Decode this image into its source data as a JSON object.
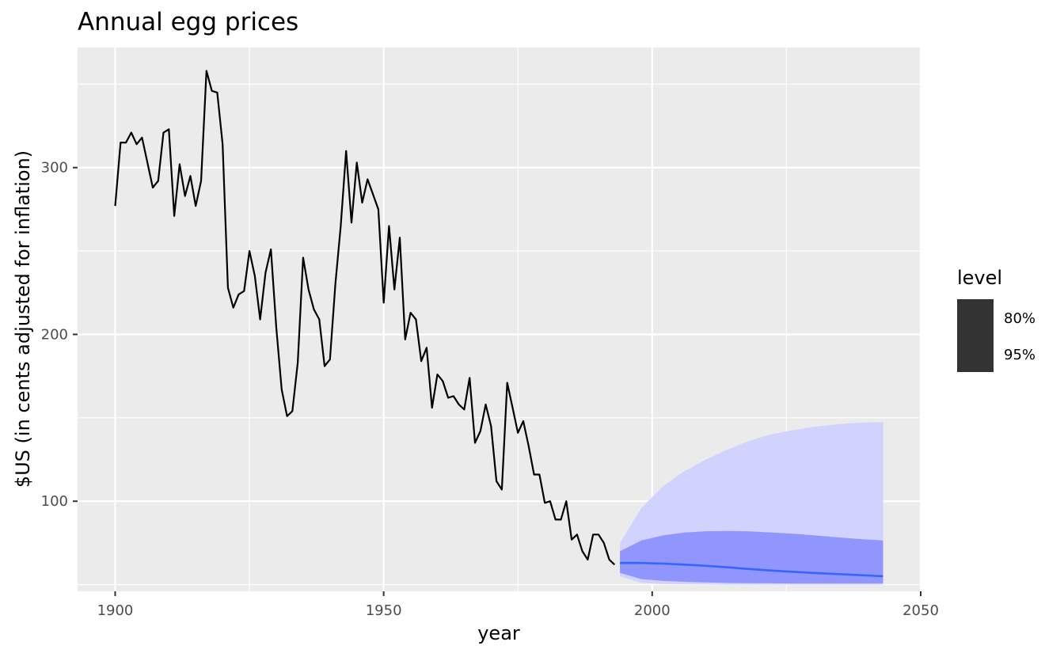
{
  "chart_data": {
    "type": "line",
    "title": "Annual egg prices",
    "xlabel": "year",
    "ylabel": "$US (in cents adjusted for inflation)",
    "xlim": [
      1893,
      2050
    ],
    "ylim": [
      46,
      372
    ],
    "x_ticks": [
      1900,
      1950,
      2000,
      2050
    ],
    "y_ticks": [
      100,
      200,
      300
    ],
    "x_tick_labels": [
      "1900",
      "1950",
      "2000",
      "2050"
    ],
    "y_tick_labels": [
      "100",
      "200",
      "300"
    ],
    "grid": true,
    "legend": {
      "title": "level",
      "position": "right",
      "entries": [
        "80%",
        "95%"
      ]
    },
    "colors": {
      "panel": "#ebebeb",
      "grid": "#ffffff",
      "history_line": "#000000",
      "forecast_line": "#3366ff",
      "band_95": "#d2d2ff",
      "band_80": "#9196ff",
      "legend_key": "#333333"
    },
    "history": {
      "x": [
        1900,
        1901,
        1902,
        1903,
        1904,
        1905,
        1906,
        1907,
        1908,
        1909,
        1910,
        1911,
        1912,
        1913,
        1914,
        1915,
        1916,
        1917,
        1918,
        1919,
        1920,
        1921,
        1922,
        1923,
        1924,
        1925,
        1926,
        1927,
        1928,
        1929,
        1930,
        1931,
        1932,
        1933,
        1934,
        1935,
        1936,
        1937,
        1938,
        1939,
        1940,
        1941,
        1942,
        1943,
        1944,
        1945,
        1946,
        1947,
        1948,
        1949,
        1950,
        1951,
        1952,
        1953,
        1954,
        1955,
        1956,
        1957,
        1958,
        1959,
        1960,
        1961,
        1962,
        1963,
        1964,
        1965,
        1966,
        1967,
        1968,
        1969,
        1970,
        1971,
        1972,
        1973,
        1974,
        1975,
        1976,
        1977,
        1978,
        1979,
        1980,
        1981,
        1982,
        1983,
        1984,
        1985,
        1986,
        1987,
        1988,
        1989,
        1990,
        1991,
        1992,
        1993
      ],
      "y": [
        277,
        315,
        315,
        321,
        314,
        318,
        303,
        288,
        292,
        321,
        323,
        271,
        302,
        283,
        295,
        277,
        292,
        358,
        346,
        345,
        314,
        228,
        216,
        224,
        226,
        250,
        235,
        209,
        237,
        251,
        204,
        167,
        151,
        154,
        183,
        246,
        227,
        215,
        209,
        181,
        185,
        230,
        265,
        310,
        267,
        303,
        279,
        293,
        284,
        275,
        219,
        265,
        227,
        258,
        197,
        213,
        209,
        184,
        192,
        156,
        176,
        172,
        162,
        163,
        158,
        155,
        174,
        135,
        142,
        158,
        145,
        112,
        107,
        171,
        156,
        141,
        148,
        133,
        116,
        116,
        99,
        100,
        89,
        89,
        100,
        77,
        80,
        70,
        65,
        80,
        80,
        75,
        65,
        62
      ]
    },
    "forecast": {
      "x": [
        1994,
        1998,
        2002,
        2006,
        2010,
        2014,
        2018,
        2022,
        2026,
        2030,
        2034,
        2038,
        2043
      ],
      "mean": [
        63,
        63,
        62.6,
        62,
        61.3,
        60.4,
        59.4,
        58.5,
        57.7,
        57,
        56.4,
        55.8,
        55
      ],
      "lo80": [
        57,
        53.3,
        52.2,
        51.7,
        51.3,
        51,
        50.9,
        50.8,
        50.7,
        50.7,
        50.7,
        50.7,
        50.7
      ],
      "hi80": [
        70,
        76.5,
        79.5,
        81.2,
        82,
        82.2,
        81.9,
        81.3,
        80.6,
        79.6,
        78.5,
        77.5,
        76.5
      ],
      "lo95": [
        55,
        51,
        50.4,
        50.2,
        50.1,
        50,
        50,
        50,
        50,
        50,
        50,
        50,
        50
      ],
      "hi95": [
        75,
        96,
        109,
        118,
        125,
        131,
        136,
        140,
        142.5,
        144.5,
        146,
        147,
        147.5
      ]
    }
  }
}
